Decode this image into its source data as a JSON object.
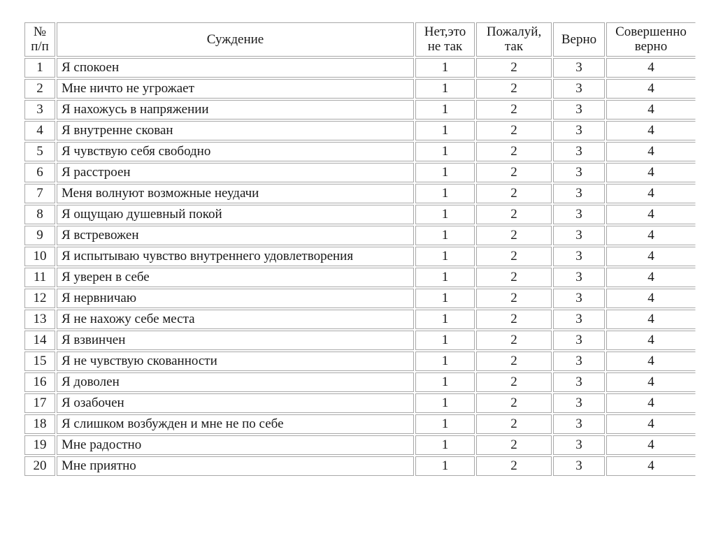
{
  "page": {
    "background": "#ffffff",
    "border_color": "#a8a8a8",
    "text_color": "#1a1a1a"
  },
  "table": {
    "columns": [
      {
        "key": "num",
        "label": "№ п/п"
      },
      {
        "key": "statement",
        "label": "Суждение"
      },
      {
        "key": "opt1",
        "label": "Нет,это не так"
      },
      {
        "key": "opt2",
        "label": "Пожалуй, так"
      },
      {
        "key": "opt3",
        "label": "Верно"
      },
      {
        "key": "opt4",
        "label": "Совершенно верно"
      }
    ],
    "rows": [
      {
        "n": "1",
        "statement": "Я спокоен",
        "values": [
          "1",
          "2",
          "3",
          "4"
        ]
      },
      {
        "n": "2",
        "statement": "Мне ничто не угрожает",
        "values": [
          "1",
          "2",
          "3",
          "4"
        ]
      },
      {
        "n": "3",
        "statement": "Я нахожусь в напряжении",
        "values": [
          "1",
          "2",
          "3",
          "4"
        ]
      },
      {
        "n": "4",
        "statement": "Я внутренне скован",
        "values": [
          "1",
          "2",
          "3",
          "4"
        ]
      },
      {
        "n": "5",
        "statement": "Я чувствую себя свободно",
        "values": [
          "1",
          "2",
          "3",
          "4"
        ]
      },
      {
        "n": "6",
        "statement": "Я расстроен",
        "values": [
          "1",
          "2",
          "3",
          "4"
        ]
      },
      {
        "n": "7",
        "statement": "Меня волнуют возможные неудачи",
        "values": [
          "1",
          "2",
          "3",
          "4"
        ]
      },
      {
        "n": "8",
        "statement": "Я ощущаю душевный покой",
        "values": [
          "1",
          "2",
          "3",
          "4"
        ]
      },
      {
        "n": "9",
        "statement": "Я встревожен",
        "values": [
          "1",
          "2",
          "3",
          "4"
        ]
      },
      {
        "n": "10",
        "statement": "Я испытываю чувство внутреннего удовлетворения",
        "values": [
          "1",
          "2",
          "3",
          "4"
        ]
      },
      {
        "n": "11",
        "statement": "Я уверен в себе",
        "values": [
          "1",
          "2",
          "3",
          "4"
        ]
      },
      {
        "n": "12",
        "statement": "Я нервничаю",
        "values": [
          "1",
          "2",
          "3",
          "4"
        ]
      },
      {
        "n": "13",
        "statement": "Я не нахожу себе места",
        "values": [
          "1",
          "2",
          "3",
          "4"
        ]
      },
      {
        "n": "14",
        "statement": "Я взвинчен",
        "values": [
          "1",
          "2",
          "3",
          "4"
        ]
      },
      {
        "n": "15",
        "statement": "Я не чувствую скованности",
        "values": [
          "1",
          "2",
          "3",
          "4"
        ]
      },
      {
        "n": "16",
        "statement": "Я доволен",
        "values": [
          "1",
          "2",
          "3",
          "4"
        ]
      },
      {
        "n": "17",
        "statement": "Я озабочен",
        "values": [
          "1",
          "2",
          "3",
          "4"
        ]
      },
      {
        "n": "18",
        "statement": "Я слишком возбужден и мне не по себе",
        "values": [
          "1",
          "2",
          "3",
          "4"
        ]
      },
      {
        "n": "19",
        "statement": "Мне радостно",
        "values": [
          "1",
          "2",
          "3",
          "4"
        ]
      },
      {
        "n": "20",
        "statement": "Мне приятно",
        "values": [
          "1",
          "2",
          "3",
          "4"
        ]
      }
    ]
  }
}
